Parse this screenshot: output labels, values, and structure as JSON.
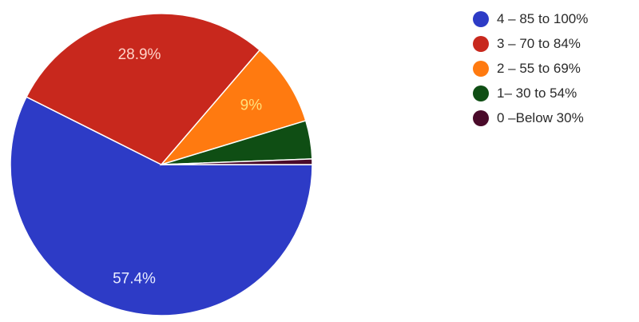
{
  "chart_data": {
    "type": "pie",
    "title": "",
    "slices": [
      {
        "name": "4 – 85 to 100%",
        "value": 57.4,
        "label": "57.4%",
        "color": "#2d3bc6",
        "label_color": "#e8ecff"
      },
      {
        "name": "3 – 70 to 84%",
        "value": 28.9,
        "label": "28.9%",
        "color": "#c8281d",
        "label_color": "#ffd2c8"
      },
      {
        "name": "2 – 55 to 69%",
        "value": 9,
        "label": "9%",
        "color": "#ff7a10",
        "label_color": "#ffe07a"
      },
      {
        "name": "1– 30 to 54%",
        "value": 4.1,
        "label": "",
        "color": "#0f4e14",
        "label_color": "#ffffff"
      },
      {
        "name": "0 –Below 30%",
        "value": 0.6,
        "label": "",
        "color": "#4a0a2a",
        "label_color": "#ffffff"
      }
    ],
    "legend_position": "top-right"
  }
}
